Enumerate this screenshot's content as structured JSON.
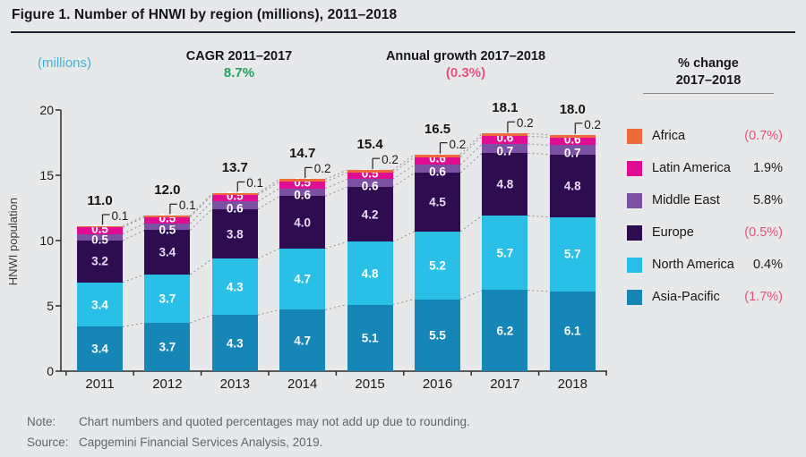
{
  "figure": {
    "title": "Figure 1. Number of HNWI by region (millions), 2011–2018",
    "units_label": "(millions)",
    "cagr": {
      "label": "CAGR 2011–2017",
      "value": "8.7%"
    },
    "annual_growth": {
      "label": "Annual growth 2017–2018",
      "value": "(0.3%)"
    },
    "note": {
      "label": "Note:",
      "text": "Chart numbers and quoted percentages may not add up due to rounding."
    },
    "source": {
      "label": "Source:",
      "text": "Capgemini Financial Services Analysis, 2019."
    }
  },
  "colors": {
    "background": "#e7e8ea",
    "cagr_value": "#1fa35c",
    "negative_value": "#e8517b",
    "units_label": "#41b3d6",
    "axis": "#2e2e2e",
    "connector": "#8f8f8f"
  },
  "legend": {
    "header_line1": "% change",
    "header_line2": "2017–2018",
    "items": [
      {
        "name": "Africa",
        "color": "#ed6b3b",
        "change": "(0.7%)",
        "negative": true
      },
      {
        "name": "Latin America",
        "color": "#e00d92",
        "change": "1.9%",
        "negative": false
      },
      {
        "name": "Middle East",
        "color": "#7c50a3",
        "change": "5.8%",
        "negative": false
      },
      {
        "name": "Europe",
        "color": "#2d0c50",
        "change": "(0.5%)",
        "negative": true
      },
      {
        "name": "North America",
        "color": "#29bfe6",
        "change": "0.4%",
        "negative": false
      },
      {
        "name": "Asia-Pacific",
        "color": "#1586b6",
        "change": "(1.7%)",
        "negative": true
      }
    ]
  },
  "chart_data": {
    "type": "bar",
    "stacked": true,
    "categories": [
      "2011",
      "2012",
      "2013",
      "2014",
      "2015",
      "2016",
      "2017",
      "2018"
    ],
    "ylabel": "HNWI population",
    "ylim": [
      0,
      20
    ],
    "yticks": [
      0,
      5,
      10,
      15,
      20
    ],
    "totals": [
      "11.0",
      "12.0",
      "13.7",
      "14.7",
      "15.4",
      "16.5",
      "18.1",
      "18.0"
    ],
    "africa_callouts": [
      "0.1",
      "0.1",
      "0.1",
      "0.2",
      "0.2",
      "0.2",
      "0.2",
      "0.2"
    ],
    "series": [
      {
        "name": "Asia-Pacific",
        "color": "#1586b6",
        "label_color": "#ffffff",
        "values": [
          3.4,
          3.7,
          4.3,
          4.7,
          5.1,
          5.5,
          6.2,
          6.1
        ]
      },
      {
        "name": "North America",
        "color": "#29bfe6",
        "label_color": "#ffffff",
        "values": [
          3.4,
          3.7,
          4.3,
          4.7,
          4.8,
          5.2,
          5.7,
          5.7
        ]
      },
      {
        "name": "Europe",
        "color": "#2d0c50",
        "label_color": "#e8def4",
        "values": [
          3.2,
          3.4,
          3.8,
          4.0,
          4.2,
          4.5,
          4.8,
          4.8
        ]
      },
      {
        "name": "Middle East",
        "color": "#7c50a3",
        "label_color": "#ffffff",
        "values": [
          0.5,
          0.5,
          0.6,
          0.6,
          0.6,
          0.6,
          0.7,
          0.7
        ]
      },
      {
        "name": "Latin America",
        "color": "#e00d92",
        "label_color": "#ffffff",
        "values": [
          0.5,
          0.5,
          0.5,
          0.5,
          0.5,
          0.6,
          0.6,
          0.6
        ]
      },
      {
        "name": "Africa",
        "color": "#ed6b3b",
        "label_color": "#ffffff",
        "values": [
          0.1,
          0.1,
          0.1,
          0.2,
          0.2,
          0.2,
          0.2,
          0.2
        ],
        "show_labels": false
      }
    ],
    "legend_position": "right",
    "grid": false
  }
}
